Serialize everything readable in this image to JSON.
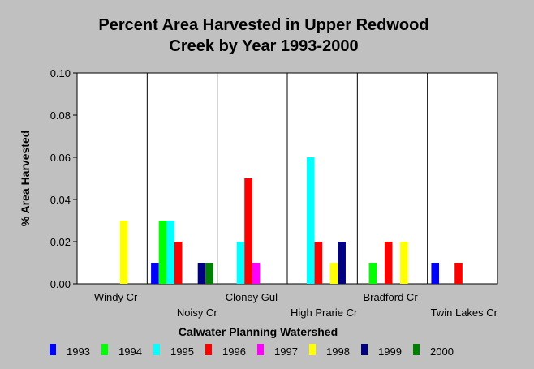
{
  "chart_data": {
    "type": "bar",
    "title": "Percent Area Harvested in Upper Redwood Creek by Year 1993-2000",
    "title_lines": [
      "Percent Area Harvested in Upper Redwood",
      "Creek by Year 1993-2000"
    ],
    "xlabel": "Calwater Planning Watershed",
    "ylabel": "% Area Harvested",
    "ylim": [
      0,
      0.1
    ],
    "yticks": [
      "0.00",
      "0.02",
      "0.04",
      "0.06",
      "0.08",
      "0.10"
    ],
    "grid": "vertical separators between categories",
    "legend_position": "bottom",
    "categories": [
      "Windy Cr",
      "Noisy Cr",
      "Cloney Gul",
      "High Prarie Cr",
      "Bradford Cr",
      "Twin Lakes Cr"
    ],
    "series": [
      {
        "name": "1993",
        "color": "#0000ff",
        "values": [
          0,
          0.01,
          0,
          0,
          0,
          0.01
        ]
      },
      {
        "name": "1994",
        "color": "#00ff00",
        "values": [
          0,
          0.03,
          0,
          0,
          0.01,
          0
        ]
      },
      {
        "name": "1995",
        "color": "#00ffff",
        "values": [
          0,
          0.03,
          0.02,
          0.06,
          0,
          0
        ]
      },
      {
        "name": "1996",
        "color": "#ff0000",
        "values": [
          0,
          0.02,
          0.05,
          0.02,
          0.02,
          0.01
        ]
      },
      {
        "name": "1997",
        "color": "#ff00ff",
        "values": [
          0,
          0,
          0.01,
          0,
          0,
          0
        ]
      },
      {
        "name": "1998",
        "color": "#ffff00",
        "values": [
          0.03,
          0,
          0,
          0.01,
          0.02,
          0
        ]
      },
      {
        "name": "1999",
        "color": "#000080",
        "values": [
          0,
          0.01,
          0,
          0.02,
          0,
          0
        ]
      },
      {
        "name": "2000",
        "color": "#008000",
        "values": [
          0,
          0.01,
          0,
          0,
          0,
          0
        ]
      }
    ]
  }
}
